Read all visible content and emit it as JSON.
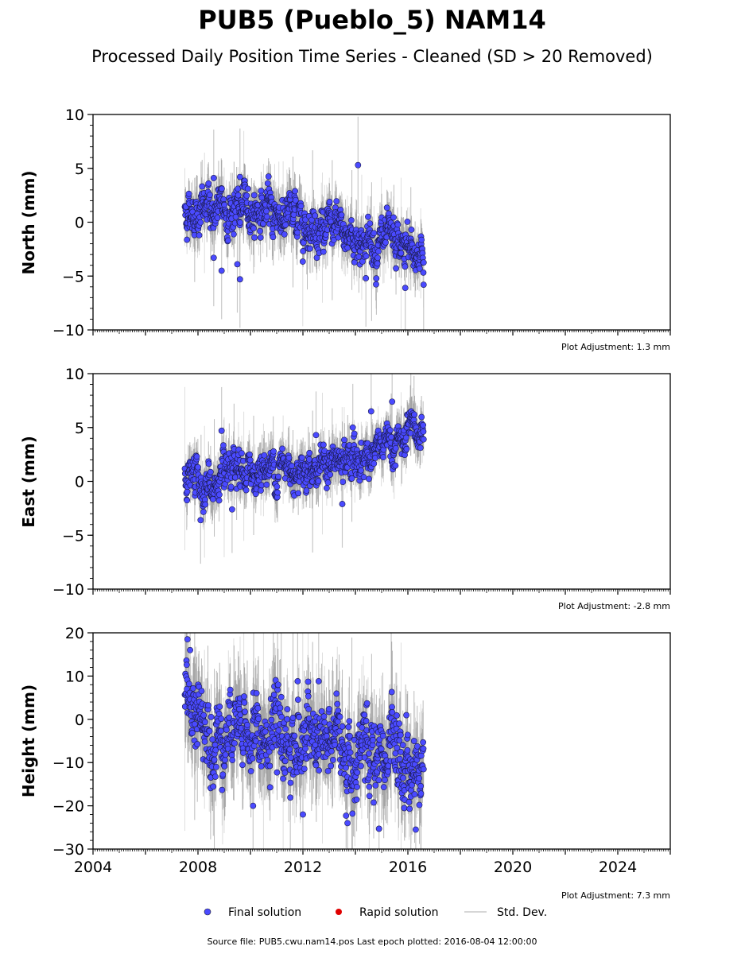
{
  "chart_data": {
    "type": "scatter",
    "title": "PUB5 (Pueblo_5) NAM14",
    "subtitle": "Processed Daily Position Time Series - Cleaned (SD > 20 Removed)",
    "x_range": [
      2004,
      2026
    ],
    "x_ticks": [
      "2004",
      "2008",
      "2012",
      "2016",
      "2020",
      "2024"
    ],
    "grid": false,
    "series_colors": {
      "final": "#4a4aff",
      "rapid": "#e00000",
      "stddev": "#9a9a9a"
    },
    "panels": [
      {
        "ylabel": "North (mm)",
        "ylim": [
          -10,
          10
        ],
        "y_ticks": [
          "10",
          "5",
          "0",
          "−5",
          "−10"
        ],
        "adjustment": "Plot Adjustment: 1.3 mm",
        "data_span": [
          2007.5,
          2016.6
        ],
        "trend": [
          [
            2007.5,
            1.0
          ],
          [
            2010.5,
            1.2
          ],
          [
            2012.0,
            0.2
          ],
          [
            2014.0,
            -1.5
          ],
          [
            2016.6,
            -3.0
          ]
        ],
        "scatter_sd": 1.0,
        "outliers": [
          [
            2014.1,
            5.3
          ],
          [
            2008.6,
            4.1
          ],
          [
            2009.6,
            4.2
          ],
          [
            2008.9,
            -4.5
          ],
          [
            2009.6,
            -5.3
          ],
          [
            2009.5,
            -3.9
          ],
          [
            2008.6,
            -3.3
          ],
          [
            2015.9,
            -6.1
          ],
          [
            2014.4,
            -5.2
          ],
          [
            2016.6,
            -5.8
          ]
        ]
      },
      {
        "ylabel": "East (mm)",
        "ylim": [
          -10,
          10
        ],
        "y_ticks": [
          "10",
          "5",
          "0",
          "−5",
          "−10"
        ],
        "adjustment": "Plot Adjustment: -2.8 mm",
        "data_span": [
          2007.5,
          2016.6
        ],
        "trend": [
          [
            2007.5,
            0.8
          ],
          [
            2008.5,
            -0.5
          ],
          [
            2010.5,
            1.2
          ],
          [
            2013.5,
            1.6
          ],
          [
            2016.6,
            4.3
          ]
        ],
        "scatter_sd": 0.9,
        "outliers": [
          [
            2008.9,
            4.7
          ],
          [
            2008.1,
            -3.6
          ],
          [
            2015.4,
            7.4
          ],
          [
            2014.6,
            6.5
          ],
          [
            2013.9,
            5.0
          ],
          [
            2009.3,
            -2.6
          ],
          [
            2013.5,
            -2.1
          ],
          [
            2012.5,
            4.3
          ]
        ]
      },
      {
        "ylabel": "Height (mm)",
        "ylim": [
          -30,
          20
        ],
        "y_ticks": [
          "20",
          "10",
          "0",
          "−10",
          "−20",
          "−30"
        ],
        "adjustment": "Plot Adjustment: 7.3 mm",
        "data_span": [
          2007.5,
          2016.6
        ],
        "trend": [
          [
            2007.5,
            3.0
          ],
          [
            2009.0,
            -3.0
          ],
          [
            2011.0,
            -5.0
          ],
          [
            2013.0,
            -5.5
          ],
          [
            2015.0,
            -9.0
          ],
          [
            2016.6,
            -12.0
          ]
        ],
        "scatter_sd": 4.5,
        "outliers": [
          [
            2007.6,
            18.5
          ],
          [
            2007.7,
            16.0
          ],
          [
            2011.8,
            8.8
          ],
          [
            2012.6,
            8.8
          ],
          [
            2013.7,
            -24.0
          ],
          [
            2014.9,
            -25.3
          ],
          [
            2016.3,
            -25.5
          ],
          [
            2012.0,
            -22.0
          ],
          [
            2010.1,
            -20.0
          ]
        ]
      }
    ],
    "legend": {
      "placement": "bottom-center",
      "items": [
        {
          "label": "Final solution",
          "marker": "dot",
          "color": "#4a4aff"
        },
        {
          "label": "Rapid solution",
          "marker": "dot",
          "color": "#e00000"
        },
        {
          "label": "Std. Dev.",
          "marker": "line",
          "color": "#c8c8c8"
        }
      ]
    },
    "source_text": "Source file: PUB5.cwu.nam14.pos  Last epoch plotted: 2016-08-04 12:00:00"
  }
}
